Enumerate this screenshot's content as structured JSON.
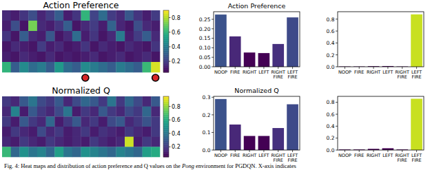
{
  "chart_data": [
    {
      "type": "heatmap",
      "title": "Action Preference",
      "tick_labels": false,
      "cells": [
        [
          0.15,
          0.12,
          0.18,
          0.25,
          0.14,
          0.2,
          0.3,
          0.12,
          0.18,
          0.6,
          0.22,
          0.35,
          0.2,
          0.15,
          0.28,
          0.18,
          0.12,
          0.2
        ],
        [
          0.12,
          0.25,
          0.1,
          0.72,
          0.15,
          0.12,
          0.18,
          0.3,
          0.1,
          0.15,
          0.2,
          0.12,
          0.32,
          0.14,
          0.1,
          0.25,
          0.15,
          0.12
        ],
        [
          0.18,
          0.1,
          0.3,
          0.15,
          0.12,
          0.28,
          0.1,
          0.15,
          0.35,
          0.12,
          0.18,
          0.1,
          0.15,
          0.4,
          0.12,
          0.2,
          0.3,
          0.15
        ],
        [
          0.1,
          0.15,
          0.12,
          0.1,
          0.2,
          0.12,
          0.15,
          0.1,
          0.12,
          0.18,
          0.1,
          0.15,
          0.12,
          0.1,
          0.15,
          0.12,
          0.1,
          0.18
        ],
        [
          0.12,
          0.1,
          0.15,
          0.12,
          0.1,
          0.15,
          0.1,
          0.12,
          0.1,
          0.12,
          0.15,
          0.1,
          0.12,
          0.15,
          0.1,
          0.12,
          0.15,
          0.1
        ],
        [
          0.6,
          0.3,
          0.45,
          0.35,
          0.4,
          0.3,
          0.5,
          0.35,
          0.3,
          0.45,
          0.4,
          0.35,
          0.3,
          0.4,
          0.35,
          0.3,
          0.62,
          0.85
        ]
      ],
      "colorbar_range": [
        0.05,
        0.9
      ],
      "colorbar_ticks": [
        0.2,
        0.4,
        0.6,
        0.8
      ],
      "highlighted_columns": [
        9,
        17
      ]
    },
    {
      "type": "bar",
      "title": "Action Preference",
      "categories": [
        "NOOP",
        "FIRE",
        "RIGHT",
        "LEFT",
        "RIGHT FIRE",
        "LEFT FIRE"
      ],
      "values": [
        0.275,
        0.16,
        0.075,
        0.072,
        0.12,
        0.26
      ],
      "colors": [
        "#3b528b",
        "#482878",
        "#440154",
        "#440154",
        "#46307e",
        "#3e4a89"
      ],
      "ylim": [
        0,
        0.29
      ],
      "yticks": [
        {
          "value": 0,
          "label": "0.00"
        },
        0.05,
        {
          "value": 0.1,
          "label": "0.10"
        },
        0.15,
        {
          "value": 0.2,
          "label": "0.20"
        },
        0.25
      ]
    },
    {
      "type": "bar",
      "categories": [
        "NOOP",
        "FIRE",
        "RIGHT",
        "LEFT",
        "RIGHT FIRE",
        "LEFT FIRE"
      ],
      "values": [
        0.005,
        0.005,
        0.01,
        0.012,
        0.005,
        0.88
      ],
      "colors": [
        "#440154",
        "#440154",
        "#440154",
        "#440154",
        "#440154",
        "#c8e020"
      ],
      "ylim": [
        0,
        0.925
      ],
      "yticks": [
        {
          "value": 0,
          "label": "0.0"
        },
        0.2,
        0.4,
        0.6,
        0.8
      ]
    },
    {
      "type": "heatmap",
      "title": "Normalized Q",
      "tick_labels": false,
      "cells": [
        [
          0.2,
          0.15,
          0.3,
          0.4,
          0.25,
          0.2,
          0.3,
          0.15,
          0.25,
          0.35,
          0.3,
          0.2,
          0.4,
          0.2,
          0.35,
          0.25,
          0.15,
          0.3
        ],
        [
          0.15,
          0.45,
          0.12,
          0.3,
          0.2,
          0.15,
          0.25,
          0.4,
          0.12,
          0.2,
          0.15,
          0.3,
          0.2,
          0.15,
          0.25,
          0.2,
          0.35,
          0.15
        ],
        [
          0.2,
          0.12,
          0.3,
          0.2,
          0.15,
          0.35,
          0.12,
          0.2,
          0.3,
          0.15,
          0.2,
          0.12,
          0.25,
          0.3,
          0.15,
          0.2,
          0.28,
          0.2
        ],
        [
          0.12,
          0.2,
          0.15,
          0.12,
          0.25,
          0.15,
          0.2,
          0.12,
          0.15,
          0.2,
          0.12,
          0.18,
          0.15,
          0.12,
          0.2,
          0.15,
          0.12,
          0.2
        ],
        [
          0.15,
          0.12,
          0.2,
          0.15,
          0.12,
          0.2,
          0.15,
          0.12,
          0.15,
          0.12,
          0.2,
          0.15,
          0.12,
          0.15,
          0.88,
          0.12,
          0.2,
          0.15
        ],
        [
          0.65,
          0.35,
          0.5,
          0.4,
          0.45,
          0.35,
          0.55,
          0.4,
          0.35,
          0.5,
          0.45,
          0.4,
          0.35,
          0.45,
          0.4,
          0.35,
          0.55,
          0.6
        ]
      ],
      "colorbar_range": [
        0.05,
        0.95
      ],
      "colorbar_ticks": [
        0.2,
        0.4,
        0.6,
        0.8
      ]
    },
    {
      "type": "bar",
      "title": "Normalized Q",
      "categories": [
        "NOOP",
        "FIRE",
        "RIGHT",
        "LEFT",
        "RIGHT FIRE",
        "LEFT FIRE"
      ],
      "values": [
        0.29,
        0.145,
        0.08,
        0.08,
        0.125,
        0.26
      ],
      "colors": [
        "#3b528b",
        "#482878",
        "#440154",
        "#440154",
        "#46307e",
        "#3e4a89"
      ],
      "ylim": [
        0,
        0.305
      ],
      "yticks": [
        {
          "value": 0,
          "label": "0.0"
        },
        0.1,
        0.2,
        0.3
      ]
    },
    {
      "type": "bar",
      "categories": [
        "NOOP",
        "FIRE",
        "RIGHT",
        "LEFT",
        "RIGHT FIRE",
        "LEFT FIRE"
      ],
      "values": [
        0.01,
        0.01,
        0.02,
        0.03,
        0.01,
        0.86
      ],
      "colors": [
        "#440154",
        "#440154",
        "#440154",
        "#440154",
        "#440154",
        "#c8e020"
      ],
      "ylim": [
        0,
        0.9
      ],
      "yticks": [
        {
          "value": 0,
          "label": "0.0"
        },
        0.2,
        0.4,
        0.6,
        0.8
      ]
    }
  ],
  "caption": [
    "Fig. 4: Heat maps and distribution of action preference and Q values on the ",
    "Pong",
    " environment for PGDQN. X-axis indicates"
  ]
}
